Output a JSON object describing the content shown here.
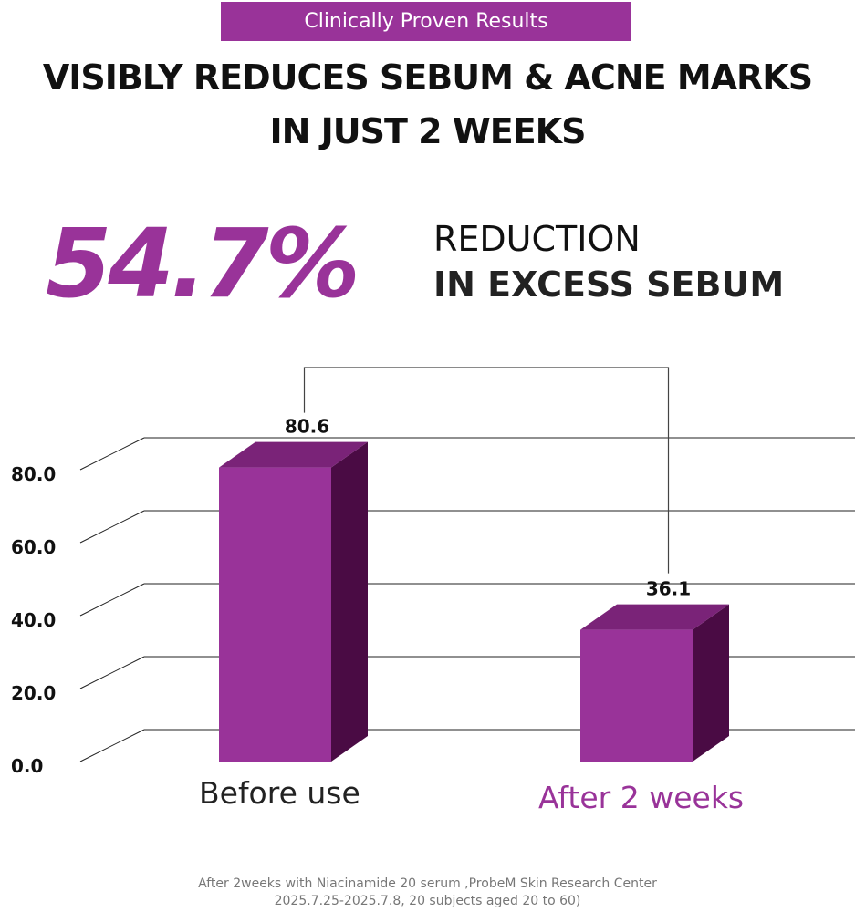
{
  "badge": "Clinically Proven Results",
  "headline_line1": "VISIBLY REDUCES SEBUM & ACNE MARKS",
  "headline_line2": "IN JUST 2 WEEKS",
  "highlight": {
    "value": "54.7%",
    "line1": "REDUCTION",
    "line2": "IN EXCESS SEBUM"
  },
  "footnote": {
    "line1": "After 2weeks with Niacinamide 20 serum ,ProbeM Skin Research Center",
    "line2": "2025.7.25-2025.7.8, 20 subjects aged 20 to 60)"
  },
  "colors": {
    "accent": "#993399",
    "bar_front": "#993399",
    "bar_top": "#7a2378",
    "bar_side": "#4a0b44"
  },
  "chart_data": {
    "type": "bar",
    "categories": [
      "Before use",
      "After 2 weeks"
    ],
    "values": [
      80.6,
      36.1
    ],
    "value_labels": [
      "80.6",
      "36.1"
    ],
    "yticks": [
      "0.0",
      "20.0",
      "40.0",
      "60.0",
      "80.0"
    ],
    "ylim": [
      0,
      90
    ],
    "grid": true,
    "style": "3d"
  }
}
